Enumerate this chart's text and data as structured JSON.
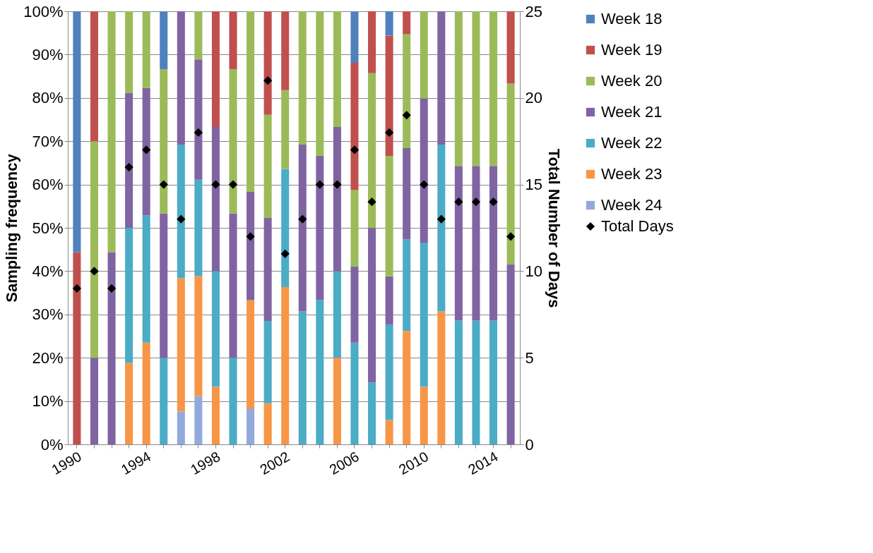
{
  "chart_data": {
    "type": "bar",
    "stacked": true,
    "ylabel": "Sampling frequency",
    "y2label": "Total Number of Days",
    "categories": [
      "1990",
      null,
      null,
      null,
      "1994",
      null,
      null,
      null,
      "1998",
      null,
      null,
      null,
      "2002",
      null,
      null,
      null,
      "2006",
      null,
      null,
      null,
      "2010",
      null,
      null,
      null,
      "2014",
      null
    ],
    "ylim": [
      0,
      100
    ],
    "yticks": [
      {
        "value": 0,
        "label": "0%"
      },
      {
        "value": 10,
        "label": "10%"
      },
      {
        "value": 20,
        "label": "20%"
      },
      {
        "value": 30,
        "label": "30%"
      },
      {
        "value": 40,
        "label": "40%"
      },
      {
        "value": 50,
        "label": "50%"
      },
      {
        "value": 60,
        "label": "60%"
      },
      {
        "value": 70,
        "label": "70%"
      },
      {
        "value": 80,
        "label": "80%"
      },
      {
        "value": 90,
        "label": "90%"
      },
      {
        "value": 100,
        "label": "100%"
      }
    ],
    "y2lim": [
      0,
      25
    ],
    "y2ticks": [
      0,
      5,
      10,
      15,
      20,
      25
    ],
    "grid": "y",
    "legend": "right",
    "series": [
      {
        "name": "Week 24",
        "color": "#93a9dc",
        "values": [
          null,
          null,
          null,
          null,
          null,
          null,
          7.6,
          11.1,
          null,
          null,
          8.3,
          null,
          null,
          null,
          null,
          null,
          null,
          null,
          null,
          null,
          null,
          null,
          null,
          null,
          null,
          null
        ]
      },
      {
        "name": "Week 23",
        "color": "#f79646",
        "values": [
          null,
          null,
          null,
          18.8,
          23.5,
          null,
          30.8,
          27.8,
          13.3,
          null,
          25,
          9.5,
          36.3,
          null,
          null,
          20,
          null,
          null,
          5.6,
          26.2,
          13.3,
          30.7,
          null,
          null,
          null,
          null
        ]
      },
      {
        "name": "Week 22",
        "color": "#4bacc6",
        "values": [
          null,
          null,
          null,
          31.2,
          29.4,
          20,
          30.8,
          22.2,
          26.7,
          20,
          null,
          19,
          27.3,
          30.7,
          33.3,
          20,
          23.5,
          14.3,
          22.1,
          21.1,
          33.3,
          38.5,
          28.6,
          28.6,
          28.6,
          null
        ]
      },
      {
        "name": "Week 21",
        "color": "#8064a2",
        "values": [
          null,
          20,
          44.4,
          31.2,
          29.4,
          33.3,
          30.8,
          27.8,
          33.3,
          33.3,
          25,
          23.8,
          null,
          38.5,
          33.3,
          33.3,
          17.6,
          35.7,
          11.1,
          21.1,
          33.3,
          30.8,
          35.7,
          35.7,
          35.7,
          41.6
        ]
      },
      {
        "name": "Week 20",
        "color": "#9bbb59",
        "values": [
          null,
          50,
          55.6,
          18.8,
          17.6,
          33.3,
          null,
          11.1,
          null,
          33.3,
          41.7,
          23.8,
          18.2,
          30.8,
          33.3,
          26.7,
          17.6,
          35.7,
          27.8,
          26.3,
          20,
          null,
          35.7,
          35.7,
          35.7,
          41.7
        ]
      },
      {
        "name": "Week 19",
        "color": "#c0504d",
        "values": [
          44.4,
          30,
          null,
          null,
          null,
          null,
          null,
          null,
          26.7,
          13.3,
          null,
          23.8,
          18.2,
          null,
          null,
          null,
          29.4,
          14.3,
          27.8,
          5.3,
          null,
          null,
          null,
          null,
          null,
          16.7
        ]
      },
      {
        "name": "Week 18",
        "color": "#4f81bd",
        "values": [
          55.6,
          null,
          null,
          null,
          null,
          13.3,
          null,
          null,
          null,
          null,
          null,
          null,
          null,
          null,
          null,
          null,
          11.8,
          null,
          5.6,
          null,
          null,
          null,
          null,
          null,
          null,
          null
        ]
      },
      {
        "name": "Total Days",
        "type": "scatter",
        "axis": "y2",
        "marker": "diamond",
        "color": "#000000",
        "values": [
          9,
          10,
          9,
          16,
          17,
          15,
          13,
          18,
          15,
          15,
          12,
          21,
          11,
          13,
          15,
          15,
          17,
          14,
          18,
          19,
          15,
          13,
          14,
          14,
          14,
          12
        ]
      }
    ]
  }
}
